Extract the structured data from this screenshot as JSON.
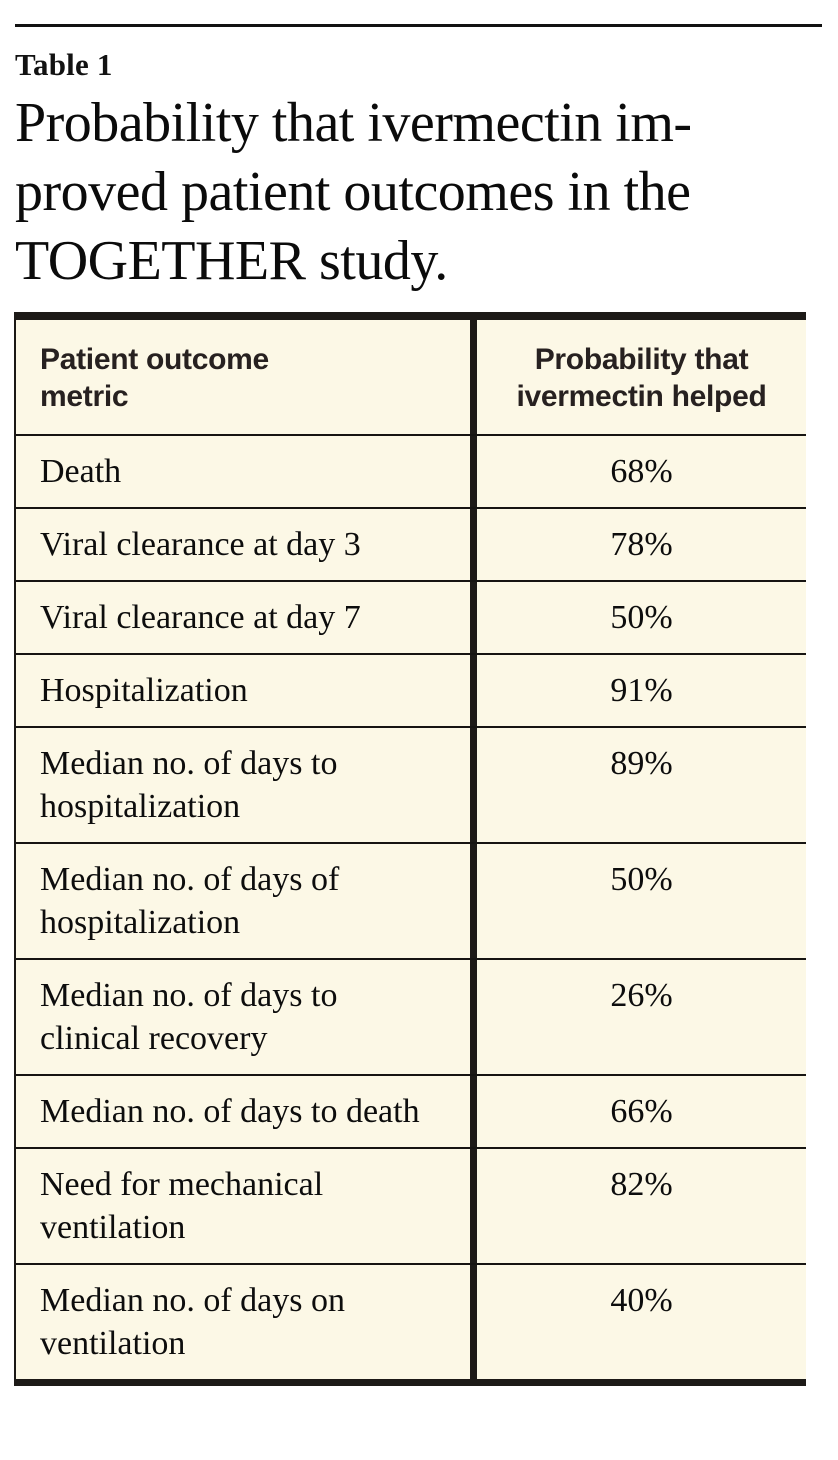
{
  "page": {
    "kicker": "Table 1",
    "title_lines": [
      "Probability that ivermectin im-",
      "proved patient outcomes in the",
      "TOGETHER study."
    ],
    "colors": {
      "page_background": "#ffffff",
      "table_background": "#fcf8e6",
      "border_dark": "#1d1a17",
      "text": "#0d0d0d"
    }
  },
  "table": {
    "header": {
      "col1_lines": [
        "Patient outcome",
        "metric"
      ],
      "col2_lines": [
        "Probability that",
        "ivermectin helped"
      ]
    },
    "rows": [
      {
        "metric": "Death",
        "value": "68%"
      },
      {
        "metric": "Viral clearance at day 3",
        "value": "78%"
      },
      {
        "metric": "Viral clearance at day 7",
        "value": "50%"
      },
      {
        "metric": "Hospitalization",
        "value": "91%"
      },
      {
        "metric": "Median no. of days to hospitalization",
        "value": "89%"
      },
      {
        "metric": "Median no. of days of hospitalization",
        "value": "50%"
      },
      {
        "metric": "Median no. of days to clinical recovery",
        "value": "26%"
      },
      {
        "metric": "Median no. of days to death",
        "value": "66%"
      },
      {
        "metric": "Need for mechanical ventilation",
        "value": "82%"
      },
      {
        "metric": "Median no. of days on ventilation",
        "value": "40%"
      }
    ]
  },
  "chart_data": {
    "type": "table",
    "title": "Probability that ivermectin improved patient outcomes in the TOGETHER study.",
    "columns": [
      "Patient outcome metric",
      "Probability that ivermectin helped"
    ],
    "rows": [
      [
        "Death",
        "68%"
      ],
      [
        "Viral clearance at day 3",
        "78%"
      ],
      [
        "Viral clearance at day 7",
        "50%"
      ],
      [
        "Hospitalization",
        "91%"
      ],
      [
        "Median no. of days to hospitalization",
        "89%"
      ],
      [
        "Median no. of days of hospitalization",
        "50%"
      ],
      [
        "Median no. of days to clinical recovery",
        "26%"
      ],
      [
        "Median no. of days to death",
        "66%"
      ],
      [
        "Need for mechanical ventilation",
        "82%"
      ],
      [
        "Median no. of days on ventilation",
        "40%"
      ]
    ],
    "values_numeric": [
      68,
      78,
      50,
      91,
      89,
      50,
      26,
      66,
      82,
      40
    ]
  }
}
